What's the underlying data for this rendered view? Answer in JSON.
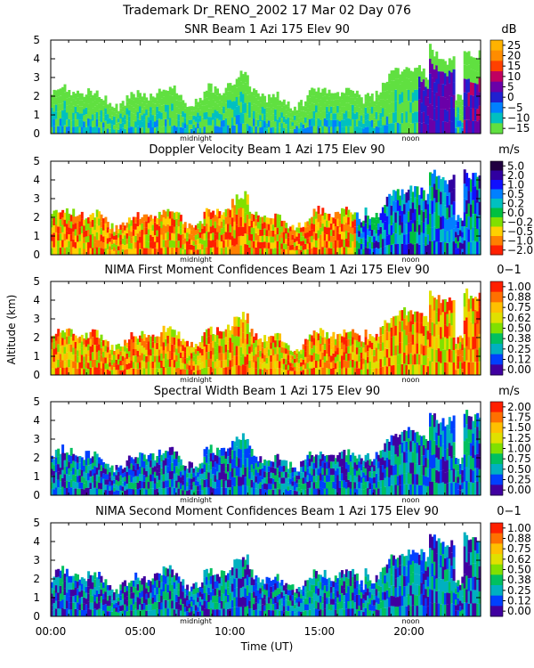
{
  "header": {
    "title": "Trademark Dr_RENO_2002  17 Mar 02 Day 076"
  },
  "axes": {
    "ylabel": "Altitude (km)",
    "xlabel": "Time (UT)",
    "x_tick_labels": [
      "00:00",
      "05:00",
      "10:00",
      "15:00",
      "20:00"
    ],
    "x_range_hours": [
      0,
      24
    ],
    "y_range_km": [
      0,
      5
    ],
    "y_ticks": [
      "0",
      "1",
      "2",
      "3",
      "4",
      "5"
    ],
    "markers": [
      {
        "label": "midnight",
        "hour": 8
      },
      {
        "label": "noon",
        "hour": 20
      }
    ]
  },
  "chart_data": [
    {
      "type": "heatmap",
      "id": "snr",
      "title": "SNR Beam 1 Azi 175 Elev 90",
      "unit": "dB",
      "colorbar_labels": [
        "25",
        "20",
        "15",
        "10",
        "5",
        "0",
        "−5",
        "−10",
        "−15"
      ],
      "colorbar_colors": [
        "#ffb200",
        "#ff8c00",
        "#ff4000",
        "#c00060",
        "#6a00a8",
        "#2020d0",
        "#0080ff",
        "#00c0c0",
        "#60e040"
      ],
      "xlim": [
        0,
        24
      ],
      "ylim": [
        0,
        5
      ]
    },
    {
      "type": "heatmap",
      "id": "doppler",
      "title": "Doppler Velocity Beam 1 Azi 175 Elev 90",
      "unit": "m/s",
      "colorbar_labels": [
        "5.0",
        "2.0",
        "1.0",
        "0.5",
        "0.2",
        "0.0",
        "−0.2",
        "−0.5",
        "−1.0",
        "−2.0"
      ],
      "colorbar_colors": [
        "#200040",
        "#3000a0",
        "#1010ff",
        "#0080ff",
        "#00c0c0",
        "#00c040",
        "#80e000",
        "#ffd000",
        "#ff8000",
        "#ff2000"
      ],
      "xlim": [
        0,
        24
      ],
      "ylim": [
        0,
        5
      ]
    },
    {
      "type": "heatmap",
      "id": "nima1",
      "title": "NIMA First Moment Confidences Beam 1 Azi 175 Elev 90",
      "unit": "0−1",
      "colorbar_labels": [
        "1.00",
        "0.88",
        "0.75",
        "0.62",
        "0.50",
        "0.38",
        "0.25",
        "0.12",
        "0.00"
      ],
      "colorbar_colors": [
        "#ff2000",
        "#ff7000",
        "#ffc000",
        "#e0e000",
        "#80e000",
        "#00c060",
        "#00b0c0",
        "#0040ff",
        "#4000a0"
      ],
      "xlim": [
        0,
        24
      ],
      "ylim": [
        0,
        5
      ]
    },
    {
      "type": "heatmap",
      "id": "width",
      "title": "Spectral Width Beam 1 Azi 175 Elev 90",
      "unit": "m/s",
      "colorbar_labels": [
        "2.00",
        "1.75",
        "1.50",
        "1.25",
        "1.00",
        "0.75",
        "0.50",
        "0.25",
        "0.00"
      ],
      "colorbar_colors": [
        "#ff2000",
        "#ff7000",
        "#ffc000",
        "#e0e000",
        "#80e000",
        "#00c060",
        "#00b0c0",
        "#0040ff",
        "#4000a0"
      ],
      "xlim": [
        0,
        24
      ],
      "ylim": [
        0,
        5
      ]
    },
    {
      "type": "heatmap",
      "id": "nima2",
      "title": "NIMA Second Moment Confidences Beam 1 Azi 175 Elev 90",
      "unit": "0−1",
      "colorbar_labels": [
        "1.00",
        "0.88",
        "0.75",
        "0.62",
        "0.50",
        "0.38",
        "0.25",
        "0.12",
        "0.00"
      ],
      "colorbar_colors": [
        "#ff2000",
        "#ff7000",
        "#ffc000",
        "#e0e000",
        "#80e000",
        "#00c060",
        "#00b0c0",
        "#0040ff",
        "#4000a0"
      ],
      "xlim": [
        0,
        24
      ],
      "ylim": [
        0,
        5
      ]
    }
  ]
}
